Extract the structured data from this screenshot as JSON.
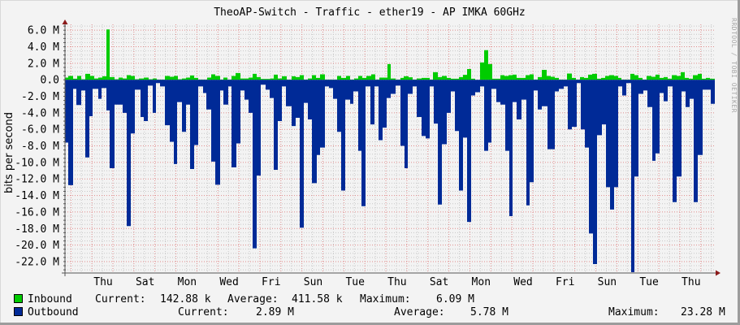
{
  "title": "TheoAP-Switch - Traffic - ether19 - AP IMKA 60GHz",
  "watermark": "RRDTOOL / TOBI OETIKER",
  "y_axis_label": "bits per second",
  "colors": {
    "inbound": "#00cc00",
    "outbound": "#002a97",
    "major_grid": "#e08a8a",
    "minor_grid": "#c8c8c8",
    "axis": "#555555",
    "arrow": "#8b1a1a",
    "background": "#f3f3f3"
  },
  "legend": {
    "inbound": {
      "label": "Inbound",
      "current_label": "Current:",
      "current_value": "142.88 k",
      "average_label": "Average:",
      "average_value": "411.58 k",
      "maximum_label": "Maximum:",
      "maximum_value": "6.09 M"
    },
    "outbound": {
      "label": "Outbound",
      "current_label": "Current:",
      "current_value": "2.89 M",
      "average_label": "Average:",
      "average_value": "5.78 M",
      "maximum_label": "Maximum:",
      "maximum_value": "23.28 M"
    }
  },
  "chart_data": {
    "type": "area",
    "title": "TheoAP-Switch - Traffic - ether19 - AP IMKA 60GHz",
    "xlabel": "",
    "ylabel": "bits per second",
    "ylim": [
      -23.5,
      6.5
    ],
    "y_unit": "M",
    "y_ticks": [
      6,
      4,
      2,
      0,
      -2,
      -4,
      -6,
      -8,
      -10,
      -12,
      -14,
      -16,
      -18,
      -20,
      -22
    ],
    "y_tick_labels": [
      "6.0 M",
      "4.0 M",
      "2.0 M",
      "0.0",
      "-2.0 M",
      "-4.0 M",
      "-6.0 M",
      "-8.0 M",
      "-10.0 M",
      "-12.0 M",
      "-14.0 M",
      "-16.0 M",
      "-18.0 M",
      "-20.0 M",
      "-22.0 M"
    ],
    "x_tick_labels": [
      "Thu",
      "Sat",
      "Mon",
      "Wed",
      "Fri",
      "Sun",
      "Tue",
      "Thu",
      "Sat",
      "Mon",
      "Wed",
      "Fri",
      "Sun",
      "Tue",
      "Thu"
    ],
    "grid": true,
    "legend_position": "bottom",
    "x_span": 800,
    "series": [
      {
        "name": "Inbound",
        "color": "#00cc00",
        "note": "step samples [x_position, value_M]",
        "points": [
          [
            0,
            0.26
          ],
          [
            4,
            0.46
          ],
          [
            10,
            0.13
          ],
          [
            15,
            0.46
          ],
          [
            20,
            0.07
          ],
          [
            25,
            0.72
          ],
          [
            31,
            0.46
          ],
          [
            36,
            0.16
          ],
          [
            41,
            0.26
          ],
          [
            46,
            0.43
          ],
          [
            51,
            6.09
          ],
          [
            55,
            0.33
          ],
          [
            61,
            0.07
          ],
          [
            66,
            0.26
          ],
          [
            71,
            0.16
          ],
          [
            76,
            0.56
          ],
          [
            81,
            0.46
          ],
          [
            86,
            0.07
          ],
          [
            91,
            0.16
          ],
          [
            97,
            0.26
          ],
          [
            103,
            0.07
          ],
          [
            108,
            0.16
          ],
          [
            113,
            0.03
          ],
          [
            123,
            0.46
          ],
          [
            129,
            0.36
          ],
          [
            134,
            0.46
          ],
          [
            139,
            0.07
          ],
          [
            144,
            0.16
          ],
          [
            149,
            0.26
          ],
          [
            154,
            0.52
          ],
          [
            159,
            0.23
          ],
          [
            164,
            0.03
          ],
          [
            175,
            0.26
          ],
          [
            180,
            0.66
          ],
          [
            185,
            0.46
          ],
          [
            191,
            0.03
          ],
          [
            195,
            0.26
          ],
          [
            200,
            0.03
          ],
          [
            205,
            0.46
          ],
          [
            210,
            0.82
          ],
          [
            216,
            0.16
          ],
          [
            226,
            0.26
          ],
          [
            231,
            0.72
          ],
          [
            236,
            0.33
          ],
          [
            241,
            0.1
          ],
          [
            253,
            0.16
          ],
          [
            257,
            0.62
          ],
          [
            262,
            0.16
          ],
          [
            267,
            0.43
          ],
          [
            273,
            0.03
          ],
          [
            279,
            0.43
          ],
          [
            284,
            0.33
          ],
          [
            289,
            0.56
          ],
          [
            294,
            0.03
          ],
          [
            299,
            0.16
          ],
          [
            304,
            0.56
          ],
          [
            309,
            0.23
          ],
          [
            314,
            0.66
          ],
          [
            320,
            0.03
          ],
          [
            335,
            0.46
          ],
          [
            340,
            0.23
          ],
          [
            346,
            0.46
          ],
          [
            351,
            0.03
          ],
          [
            356,
            0.16
          ],
          [
            361,
            0.46
          ],
          [
            366,
            0.23
          ],
          [
            371,
            0.46
          ],
          [
            377,
            0.66
          ],
          [
            382,
            0.03
          ],
          [
            387,
            0.26
          ],
          [
            397,
            1.9
          ],
          [
            401,
            0.16
          ],
          [
            407,
            0.03
          ],
          [
            413,
            0.23
          ],
          [
            417,
            0.43
          ],
          [
            423,
            0.3
          ],
          [
            428,
            0.03
          ],
          [
            433,
            0.16
          ],
          [
            439,
            0.23
          ],
          [
            449,
            0.03
          ],
          [
            453,
            0.92
          ],
          [
            459,
            0.33
          ],
          [
            464,
            0.46
          ],
          [
            470,
            0.23
          ],
          [
            475,
            0.13
          ],
          [
            485,
            0.33
          ],
          [
            490,
            0.6
          ],
          [
            495,
            1.3
          ],
          [
            500,
            0.13
          ],
          [
            505,
            0.0
          ],
          [
            511,
            2.1
          ],
          [
            516,
            3.58
          ],
          [
            521,
            1.9
          ],
          [
            526,
            0.13
          ],
          [
            536,
            0.56
          ],
          [
            541,
            0.46
          ],
          [
            546,
            0.56
          ],
          [
            551,
            0.62
          ],
          [
            556,
            0.23
          ],
          [
            567,
            0.56
          ],
          [
            572,
            0.66
          ],
          [
            577,
            0.03
          ],
          [
            582,
            0.33
          ],
          [
            587,
            1.2
          ],
          [
            593,
            0.46
          ],
          [
            598,
            0.36
          ],
          [
            603,
            0.23
          ],
          [
            608,
            0.03
          ],
          [
            618,
            0.76
          ],
          [
            624,
            0.23
          ],
          [
            629,
            0.03
          ],
          [
            634,
            0.33
          ],
          [
            639,
            0.23
          ],
          [
            644,
            0.62
          ],
          [
            649,
            0.72
          ],
          [
            655,
            0.13
          ],
          [
            660,
            0.23
          ],
          [
            665,
            0.46
          ],
          [
            670,
            0.56
          ],
          [
            676,
            0.46
          ],
          [
            681,
            0.23
          ],
          [
            685,
            0.03
          ],
          [
            696,
            0.72
          ],
          [
            701,
            0.56
          ],
          [
            706,
            0.23
          ],
          [
            711,
            0.03
          ],
          [
            716,
            0.46
          ],
          [
            722,
            0.36
          ],
          [
            727,
            0.62
          ],
          [
            732,
            0.23
          ],
          [
            737,
            0.33
          ],
          [
            742,
            0.13
          ],
          [
            747,
            0.56
          ],
          [
            753,
            0.46
          ],
          [
            758,
            0.92
          ],
          [
            763,
            0.23
          ],
          [
            768,
            0.13
          ],
          [
            773,
            0.56
          ],
          [
            779,
            0.72
          ],
          [
            784,
            0.13
          ],
          [
            789,
            0.23
          ],
          [
            794,
            0.13
          ]
        ]
      },
      {
        "name": "Outbound",
        "color": "#002a97",
        "note": "plotted as negative values; step samples [x_position, value_M]",
        "points": [
          [
            0,
            -7.6
          ],
          [
            4,
            -12.75
          ],
          [
            10,
            -1.1
          ],
          [
            14,
            -3.05
          ],
          [
            20,
            -1.3
          ],
          [
            25,
            -9.4
          ],
          [
            30,
            -4.4
          ],
          [
            34,
            -1.1
          ],
          [
            41,
            -2.3
          ],
          [
            45,
            -1.0
          ],
          [
            51,
            -3.7
          ],
          [
            55,
            -10.7
          ],
          [
            61,
            -3.0
          ],
          [
            71,
            -4.0
          ],
          [
            76,
            -17.7
          ],
          [
            81,
            -6.5
          ],
          [
            86,
            -1.2
          ],
          [
            93,
            -4.5
          ],
          [
            97,
            -5.0
          ],
          [
            102,
            -0.7
          ],
          [
            108,
            -4.0
          ],
          [
            112,
            -0.4
          ],
          [
            117,
            -0.8
          ],
          [
            123,
            -5.5
          ],
          [
            129,
            -7.5
          ],
          [
            134,
            -10.2
          ],
          [
            138,
            -2.7
          ],
          [
            144,
            -6.3
          ],
          [
            149,
            -3.0
          ],
          [
            154,
            -10.8
          ],
          [
            159,
            -7.9
          ],
          [
            164,
            -0.8
          ],
          [
            170,
            -1.6
          ],
          [
            174,
            -3.6
          ],
          [
            180,
            -9.9
          ],
          [
            185,
            -12.7
          ],
          [
            191,
            -1.3
          ],
          [
            195,
            -3.0
          ],
          [
            201,
            -0.8
          ],
          [
            205,
            -10.6
          ],
          [
            211,
            -7.7
          ],
          [
            216,
            -1.3
          ],
          [
            221,
            -2.4
          ],
          [
            226,
            -4.0
          ],
          [
            231,
            -20.4
          ],
          [
            236,
            -11.6
          ],
          [
            241,
            -0.6
          ],
          [
            247,
            -1.2
          ],
          [
            252,
            -2.2
          ],
          [
            257,
            -10.9
          ],
          [
            262,
            -5.0
          ],
          [
            267,
            -0.8
          ],
          [
            272,
            -3.2
          ],
          [
            279,
            -5.6
          ],
          [
            284,
            -4.6
          ],
          [
            289,
            -17.9
          ],
          [
            294,
            -2.8
          ],
          [
            299,
            -4.8
          ],
          [
            304,
            -12.5
          ],
          [
            310,
            -9.1
          ],
          [
            314,
            -8.2
          ],
          [
            320,
            -0.8
          ],
          [
            325,
            -1.0
          ],
          [
            330,
            -2.3
          ],
          [
            335,
            -6.3
          ],
          [
            340,
            -13.4
          ],
          [
            345,
            -2.4
          ],
          [
            351,
            -2.9
          ],
          [
            355,
            -1.4
          ],
          [
            361,
            -8.6
          ],
          [
            365,
            -15.3
          ],
          [
            370,
            -0.8
          ],
          [
            376,
            -5.4
          ],
          [
            381,
            -0.8
          ],
          [
            386,
            -7.3
          ],
          [
            391,
            -5.8
          ],
          [
            396,
            -2.2
          ],
          [
            401,
            -1.7
          ],
          [
            407,
            -0.7
          ],
          [
            413,
            -8.0
          ],
          [
            418,
            -10.7
          ],
          [
            422,
            -1.7
          ],
          [
            428,
            -0.8
          ],
          [
            433,
            -4.5
          ],
          [
            439,
            -6.8
          ],
          [
            444,
            -7.1
          ],
          [
            449,
            -0.8
          ],
          [
            454,
            -5.3
          ],
          [
            459,
            -15.1
          ],
          [
            464,
            -7.8
          ],
          [
            470,
            -4.0
          ],
          [
            475,
            -1.4
          ],
          [
            480,
            -6.2
          ],
          [
            485,
            -13.4
          ],
          [
            490,
            -7.0
          ],
          [
            495,
            -17.2
          ],
          [
            500,
            -1.9
          ],
          [
            505,
            -1.5
          ],
          [
            511,
            -0.8
          ],
          [
            516,
            -8.6
          ],
          [
            521,
            -7.6
          ],
          [
            525,
            -1.1
          ],
          [
            531,
            -2.7
          ],
          [
            536,
            -3.0
          ],
          [
            542,
            -8.6
          ],
          [
            547,
            -16.5
          ],
          [
            551,
            -2.7
          ],
          [
            556,
            -4.8
          ],
          [
            562,
            -2.4
          ],
          [
            568,
            -15.2
          ],
          [
            572,
            -12.4
          ],
          [
            577,
            -1.3
          ],
          [
            582,
            -3.6
          ],
          [
            587,
            -3.2
          ],
          [
            594,
            -8.4
          ],
          [
            603,
            -1.4
          ],
          [
            608,
            -1.1
          ],
          [
            614,
            -0.8
          ],
          [
            619,
            -6.0
          ],
          [
            624,
            -5.7
          ],
          [
            630,
            -0.4
          ],
          [
            635,
            -6.0
          ],
          [
            640,
            -8.2
          ],
          [
            645,
            -18.6
          ],
          [
            650,
            -22.3
          ],
          [
            655,
            -6.7
          ],
          [
            661,
            -5.4
          ],
          [
            666,
            -13.0
          ],
          [
            671,
            -15.7
          ],
          [
            676,
            -13.0
          ],
          [
            681,
            -0.8
          ],
          [
            686,
            -1.9
          ],
          [
            691,
            -0.4
          ],
          [
            697,
            -23.28
          ],
          [
            701,
            -11.7
          ],
          [
            706,
            -1.7
          ],
          [
            712,
            -1.3
          ],
          [
            717,
            -3.3
          ],
          [
            723,
            -9.8
          ],
          [
            727,
            -8.9
          ],
          [
            732,
            -1.6
          ],
          [
            737,
            -2.6
          ],
          [
            742,
            -0.8
          ],
          [
            748,
            -14.8
          ],
          [
            753,
            -11.7
          ],
          [
            759,
            -1.4
          ],
          [
            764,
            -3.3
          ],
          [
            769,
            -2.3
          ],
          [
            774,
            -14.8
          ],
          [
            779,
            -9.1
          ],
          [
            785,
            -1.2
          ],
          [
            795,
            -2.9
          ]
        ]
      }
    ]
  }
}
